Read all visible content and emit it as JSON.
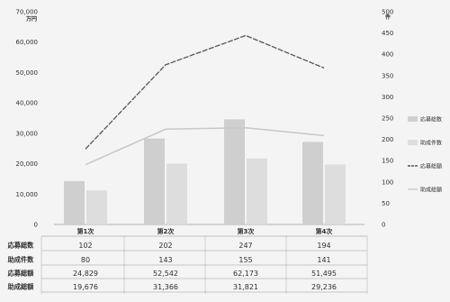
{
  "chart_data": {
    "type": "bar",
    "categories": [
      "第1次",
      "第2次",
      "第3次",
      "第4次"
    ],
    "left_axis": {
      "unit": "万円",
      "ylim": [
        0,
        70000
      ],
      "ticks": [
        "0",
        "10,000",
        "20,000",
        "30,000",
        "40,000",
        "50,000",
        "60,000",
        "70,000"
      ]
    },
    "right_axis": {
      "unit": "件",
      "ylim": [
        0,
        500
      ],
      "ticks": [
        "0",
        "50",
        "100",
        "150",
        "200",
        "250",
        "300",
        "350",
        "400",
        "450",
        "500"
      ]
    },
    "series": [
      {
        "name": "応募総数",
        "kind": "bar",
        "axis": "right",
        "color": "#cfcfcf",
        "values": [
          102,
          202,
          247,
          194
        ]
      },
      {
        "name": "助成件数",
        "kind": "bar",
        "axis": "right",
        "color": "#dddddd",
        "values": [
          80,
          143,
          155,
          141
        ]
      },
      {
        "name": "応募総額",
        "kind": "line",
        "axis": "left",
        "color": "#555555",
        "dashed": true,
        "values": [
          24829,
          52542,
          62173,
          51495
        ]
      },
      {
        "name": "助成総額",
        "kind": "line",
        "axis": "left",
        "color": "#c8c8c8",
        "dashed": false,
        "values": [
          19676,
          31366,
          31821,
          29236
        ]
      }
    ],
    "legend_position": "right",
    "grid": false,
    "table": {
      "rows": [
        {
          "label": "応募総数",
          "values": [
            "102",
            "202",
            "247",
            "194"
          ]
        },
        {
          "label": "助成件数",
          "values": [
            "80",
            "143",
            "155",
            "141"
          ]
        },
        {
          "label": "応募総額",
          "values": [
            "24,829",
            "52,542",
            "62,173",
            "51,495"
          ]
        },
        {
          "label": "助成総額",
          "values": [
            "19,676",
            "31,366",
            "31,821",
            "29,236"
          ]
        }
      ]
    }
  }
}
